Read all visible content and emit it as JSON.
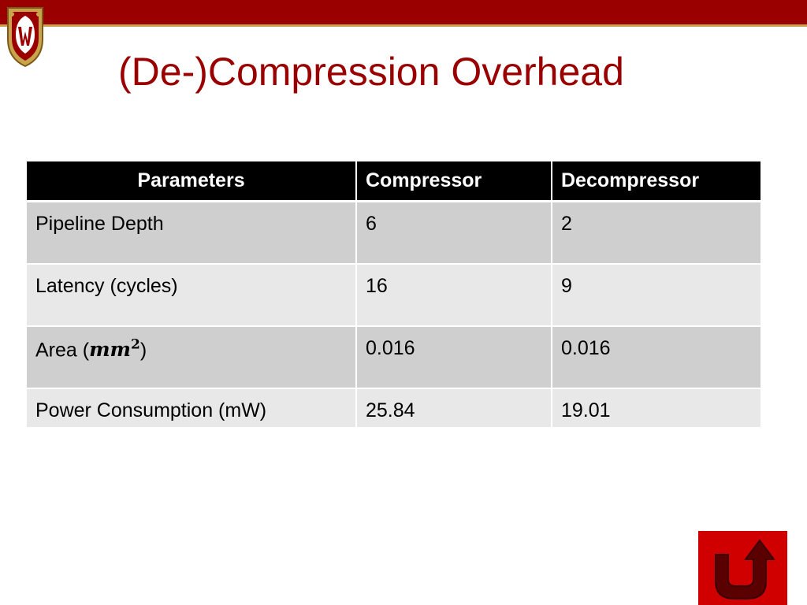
{
  "slide": {
    "title": "(De-)Compression Overhead"
  },
  "colors": {
    "brand_red": "#9b0000",
    "gold": "#c9a44a",
    "header_bg": "#000000",
    "row_dark": "#cfcfcf",
    "row_light": "#e8e8e8",
    "title_color": "#9b0000"
  },
  "table": {
    "headers": [
      "Parameters",
      "Compressor",
      "Decompressor"
    ],
    "rows": [
      {
        "label": "Pipeline Depth",
        "compressor": "6",
        "decompressor": "2"
      },
      {
        "label": "Latency (cycles)",
        "compressor": "16",
        "decompressor": "9"
      },
      {
        "label_prefix": "Area (",
        "label_math": "mm",
        "label_exp": "2",
        "label_suffix": ")",
        "compressor": "0.016",
        "decompressor": "0.016"
      },
      {
        "label": "Power Consumption (mW)",
        "compressor": "25.84",
        "decompressor": "19.01"
      }
    ]
  },
  "icons": {
    "crest": "uw-crest-icon",
    "return": "return-arrow-icon"
  }
}
